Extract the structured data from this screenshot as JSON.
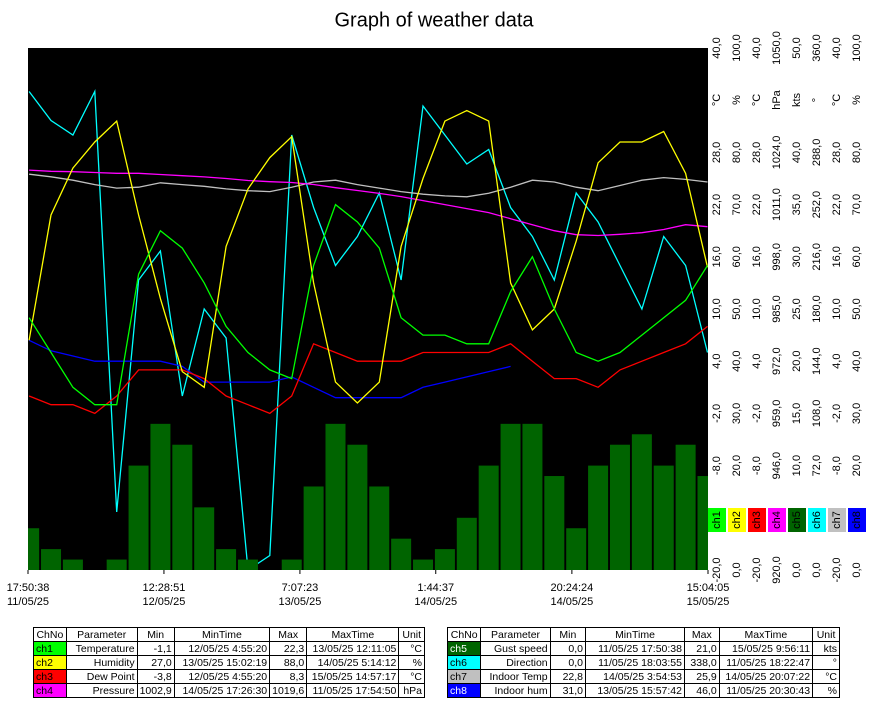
{
  "chart_data": {
    "type": "line",
    "title": "Graph of weather data",
    "xlim": [
      "2025-05-11T17:50:38",
      "2025-05-15T15:04:05"
    ],
    "xticks": [
      {
        "value": "2025-05-11T17:50:38",
        "label": [
          "17:50:38",
          "11/05/25"
        ]
      },
      {
        "value": "2025-05-12T12:28:51",
        "label": [
          "12:28:51",
          "12/05/25"
        ]
      },
      {
        "value": "2025-05-13T07:07:23",
        "label": [
          "7:07:23",
          "13/05/25"
        ]
      },
      {
        "value": "2025-05-14T01:44:37",
        "label": [
          "1:44:37",
          "14/05/25"
        ]
      },
      {
        "value": "2025-05-14T20:24:24",
        "label": [
          "20:24:24",
          "14/05/25"
        ]
      },
      {
        "value": "2025-05-15T15:04:05",
        "label": [
          "15:04:05",
          "15/05/25"
        ]
      }
    ],
    "x": [
      "2025-05-11T18:00",
      "2025-05-11T21:00",
      "2025-05-12T00:00",
      "2025-05-12T03:00",
      "2025-05-12T06:00",
      "2025-05-12T09:00",
      "2025-05-12T12:00",
      "2025-05-12T15:00",
      "2025-05-12T18:00",
      "2025-05-12T21:00",
      "2025-05-13T00:00",
      "2025-05-13T03:00",
      "2025-05-13T06:00",
      "2025-05-13T09:00",
      "2025-05-13T12:00",
      "2025-05-13T15:00",
      "2025-05-13T18:00",
      "2025-05-13T21:00",
      "2025-05-14T00:00",
      "2025-05-14T03:00",
      "2025-05-14T06:00",
      "2025-05-14T09:00",
      "2025-05-14T12:00",
      "2025-05-14T15:00",
      "2025-05-14T18:00",
      "2025-05-14T21:00",
      "2025-05-15T00:00",
      "2025-05-15T03:00",
      "2025-05-15T06:00",
      "2025-05-15T09:00",
      "2025-05-15T12:00",
      "2025-05-15T15:00"
    ],
    "y_axes": [
      {
        "unit": "°C",
        "ylim": [
          -20,
          40
        ],
        "yticks": [
          {
            "value": 40,
            "label": "40,0"
          },
          {
            "value": 28,
            "label": "28,0"
          },
          {
            "value": 22,
            "label": "22,0"
          },
          {
            "value": 16,
            "label": "16,0"
          },
          {
            "value": 10,
            "label": "10,0"
          },
          {
            "value": 4,
            "label": "4,0"
          },
          {
            "value": -2,
            "label": "-2,0"
          },
          {
            "value": -8,
            "label": "-8,0"
          },
          {
            "value": -20,
            "label": "-20,0"
          }
        ]
      },
      {
        "unit": "%",
        "ylim": [
          0,
          100
        ],
        "yticks": [
          {
            "value": 100,
            "label": "100,0"
          },
          {
            "value": 80,
            "label": "80,0"
          },
          {
            "value": 70,
            "label": "70,0"
          },
          {
            "value": 60,
            "label": "60,0"
          },
          {
            "value": 50,
            "label": "50,0"
          },
          {
            "value": 40,
            "label": "40,0"
          },
          {
            "value": 30,
            "label": "30,0"
          },
          {
            "value": 20,
            "label": "20,0"
          },
          {
            "value": 0,
            "label": "0,0"
          }
        ]
      },
      {
        "unit": "°C",
        "ylim": [
          -20,
          40
        ],
        "yticks": [
          {
            "value": 40,
            "label": "40,0"
          },
          {
            "value": 28,
            "label": "28,0"
          },
          {
            "value": 22,
            "label": "22,0"
          },
          {
            "value": 16,
            "label": "16,0"
          },
          {
            "value": 10,
            "label": "10,0"
          },
          {
            "value": 4,
            "label": "4,0"
          },
          {
            "value": -2,
            "label": "-2,0"
          },
          {
            "value": -8,
            "label": "-8,0"
          },
          {
            "value": -20,
            "label": "-20,0"
          }
        ]
      },
      {
        "unit": "hPa",
        "ylim": [
          920,
          1050
        ],
        "yticks": [
          {
            "value": 1050,
            "label": "1050,0"
          },
          {
            "value": 1024,
            "label": "1024,0"
          },
          {
            "value": 1011,
            "label": "1011,0"
          },
          {
            "value": 998,
            "label": "998,0"
          },
          {
            "value": 985,
            "label": "985,0"
          },
          {
            "value": 972,
            "label": "972,0"
          },
          {
            "value": 959,
            "label": "959,0"
          },
          {
            "value": 946,
            "label": "946,0"
          },
          {
            "value": 920,
            "label": "920,0"
          }
        ]
      },
      {
        "unit": "kts",
        "ylim": [
          0,
          50
        ],
        "yticks": [
          {
            "value": 50,
            "label": "50,0"
          },
          {
            "value": 40,
            "label": "40,0"
          },
          {
            "value": 35,
            "label": "35,0"
          },
          {
            "value": 30,
            "label": "30,0"
          },
          {
            "value": 25,
            "label": "25,0"
          },
          {
            "value": 20,
            "label": "20,0"
          },
          {
            "value": 15,
            "label": "15,0"
          },
          {
            "value": 10,
            "label": "10,0"
          },
          {
            "value": 0,
            "label": "0,0"
          }
        ]
      },
      {
        "unit": "°",
        "ylim": [
          0,
          360
        ],
        "yticks": [
          {
            "value": 360,
            "label": "360,0"
          },
          {
            "value": 288,
            "label": "288,0"
          },
          {
            "value": 252,
            "label": "252,0"
          },
          {
            "value": 216,
            "label": "216,0"
          },
          {
            "value": 180,
            "label": "180,0"
          },
          {
            "value": 144,
            "label": "144,0"
          },
          {
            "value": 108,
            "label": "108,0"
          },
          {
            "value": 72,
            "label": "72,0"
          },
          {
            "value": 0,
            "label": "0,0"
          }
        ]
      },
      {
        "unit": "°C",
        "ylim": [
          -20,
          40
        ],
        "yticks": [
          {
            "value": 40,
            "label": "40,0"
          },
          {
            "value": 28,
            "label": "28,0"
          },
          {
            "value": 22,
            "label": "22,0"
          },
          {
            "value": 16,
            "label": "16,0"
          },
          {
            "value": 10,
            "label": "10,0"
          },
          {
            "value": 4,
            "label": "4,0"
          },
          {
            "value": -2,
            "label": "-2,0"
          },
          {
            "value": -8,
            "label": "-8,0"
          },
          {
            "value": -20,
            "label": "-20,0"
          }
        ]
      },
      {
        "unit": "%",
        "ylim": [
          0,
          100
        ],
        "yticks": [
          {
            "value": 100,
            "label": "100,0"
          },
          {
            "value": 80,
            "label": "80,0"
          },
          {
            "value": 70,
            "label": "70,0"
          },
          {
            "value": 60,
            "label": "60,0"
          },
          {
            "value": 50,
            "label": "50,0"
          },
          {
            "value": 40,
            "label": "40,0"
          },
          {
            "value": 30,
            "label": "30,0"
          },
          {
            "value": 20,
            "label": "20,0"
          },
          {
            "value": 0,
            "label": "0,0"
          }
        ]
      }
    ],
    "series": [
      {
        "name": "ch1",
        "color": "#00ff00",
        "axis": 0,
        "style": "line",
        "values": [
          9,
          5,
          1,
          -1,
          -1,
          14,
          19,
          17,
          13,
          8,
          5,
          3,
          2,
          15,
          22,
          20,
          17,
          9,
          7,
          7,
          6,
          6,
          12,
          16,
          10,
          5,
          4,
          5,
          7,
          9,
          11,
          15
        ]
      },
      {
        "name": "ch2",
        "color": "#ffff00",
        "axis": 1,
        "style": "line",
        "values": [
          44,
          68,
          77,
          82,
          86,
          68,
          52,
          38,
          35,
          62,
          73,
          79,
          83,
          55,
          36,
          32,
          36,
          62,
          75,
          86,
          88,
          86,
          55,
          46,
          50,
          63,
          78,
          82,
          82,
          84,
          76,
          58
        ]
      },
      {
        "name": "ch3",
        "color": "#ff0000",
        "axis": 2,
        "style": "line",
        "values": [
          0,
          -1,
          -1,
          -2,
          0,
          3,
          3,
          3,
          2,
          0,
          -1,
          -2,
          0,
          6,
          5,
          4,
          4,
          4,
          5,
          5,
          5,
          5,
          6,
          4,
          2,
          2,
          1,
          3,
          4,
          5,
          6,
          8
        ]
      },
      {
        "name": "ch4",
        "color": "#ff00ff",
        "axis": 3,
        "style": "line",
        "values": [
          1019.6,
          1019.3,
          1019.2,
          1019.0,
          1018.8,
          1018.8,
          1018.5,
          1018.2,
          1017.9,
          1017.5,
          1017.0,
          1016.7,
          1016.5,
          1016.0,
          1015.2,
          1014.5,
          1013.8,
          1013.0,
          1012.0,
          1011.0,
          1010.0,
          1009.0,
          1007.5,
          1006.0,
          1004.5,
          1003.5,
          1003.3,
          1003.6,
          1004.0,
          1004.8,
          1006.0,
          1005.5
        ]
      },
      {
        "name": "ch5",
        "color": "#006400",
        "axis": 4,
        "style": "bar",
        "values": [
          4,
          2,
          1,
          0,
          1,
          10,
          14,
          12,
          6,
          2,
          1,
          0,
          1,
          8,
          14,
          12,
          8,
          3,
          1,
          2,
          5,
          10,
          14,
          14,
          9,
          4,
          10,
          12,
          13,
          10,
          12,
          9
        ]
      },
      {
        "name": "ch6",
        "color": "#00ffff",
        "axis": 5,
        "style": "line",
        "values": [
          330,
          310,
          300,
          330,
          40,
          200,
          220,
          120,
          180,
          160,
          0,
          10,
          300,
          250,
          210,
          230,
          260,
          200,
          320,
          300,
          280,
          290,
          250,
          230,
          200,
          260,
          240,
          210,
          180,
          230,
          210,
          150
        ]
      },
      {
        "name": "ch7",
        "color": "#c0c0c0",
        "axis": 6,
        "style": "line",
        "values": [
          25.5,
          25.2,
          24.8,
          24.3,
          23.9,
          24.0,
          24.5,
          24.3,
          24.1,
          23.8,
          23.6,
          23.5,
          24.0,
          24.6,
          24.8,
          24.3,
          23.9,
          23.5,
          23.2,
          23.0,
          22.9,
          23.3,
          24.0,
          24.8,
          24.6,
          24.0,
          23.6,
          24.2,
          24.8,
          25.1,
          24.9,
          24.6
        ]
      },
      {
        "name": "ch8",
        "color": "#0000ff",
        "axis": 7,
        "style": "line",
        "values": [
          44,
          42,
          41,
          40,
          40,
          40,
          40,
          39,
          36,
          36,
          36,
          36,
          37,
          35,
          33,
          33,
          33,
          33,
          35,
          36,
          37,
          38,
          39,
          null,
          null,
          null,
          null,
          null,
          null,
          null,
          null,
          null
        ]
      }
    ]
  },
  "tables": [
    {
      "header": [
        "ChNo",
        "Parameter",
        "Min",
        "MinTime",
        "Max",
        "MaxTime",
        "Unit"
      ],
      "rows": [
        [
          "ch1",
          "Temperature",
          "-1,1",
          "12/05/25 4:55:20",
          "22,3",
          "13/05/25 12:11:05",
          "°C"
        ],
        [
          "ch2",
          "Humidity",
          "27,0",
          "13/05/25 15:02:19",
          "88,0",
          "14/05/25 5:14:12",
          "%"
        ],
        [
          "ch3",
          "Dew Point",
          "-3,8",
          "12/05/25 4:55:20",
          "8,3",
          "15/05/25 14:57:17",
          "°C"
        ],
        [
          "ch4",
          "Pressure",
          "1002,9",
          "14/05/25 17:26:30",
          "1019,6",
          "11/05/25 17:54:50",
          "hPa"
        ]
      ]
    },
    {
      "header": [
        "ChNo",
        "Parameter",
        "Min",
        "MinTime",
        "Max",
        "MaxTime",
        "Unit"
      ],
      "rows": [
        [
          "ch5",
          "Gust speed",
          "0,0",
          "11/05/25 17:50:38",
          "21,0",
          "15/05/25 9:56:11",
          "kts"
        ],
        [
          "ch6",
          "Direction",
          "0,0",
          "11/05/25 18:03:55",
          "338,0",
          "11/05/25 18:22:47",
          "°"
        ],
        [
          "ch7",
          "Indoor Temp",
          "22,8",
          "14/05/25 3:54:53",
          "25,9",
          "14/05/25 20:07:22",
          "°C"
        ],
        [
          "ch8",
          "Indoor hum",
          "31,0",
          "13/05/25 15:57:42",
          "46,0",
          "11/05/25 20:30:43",
          "%"
        ]
      ]
    }
  ]
}
